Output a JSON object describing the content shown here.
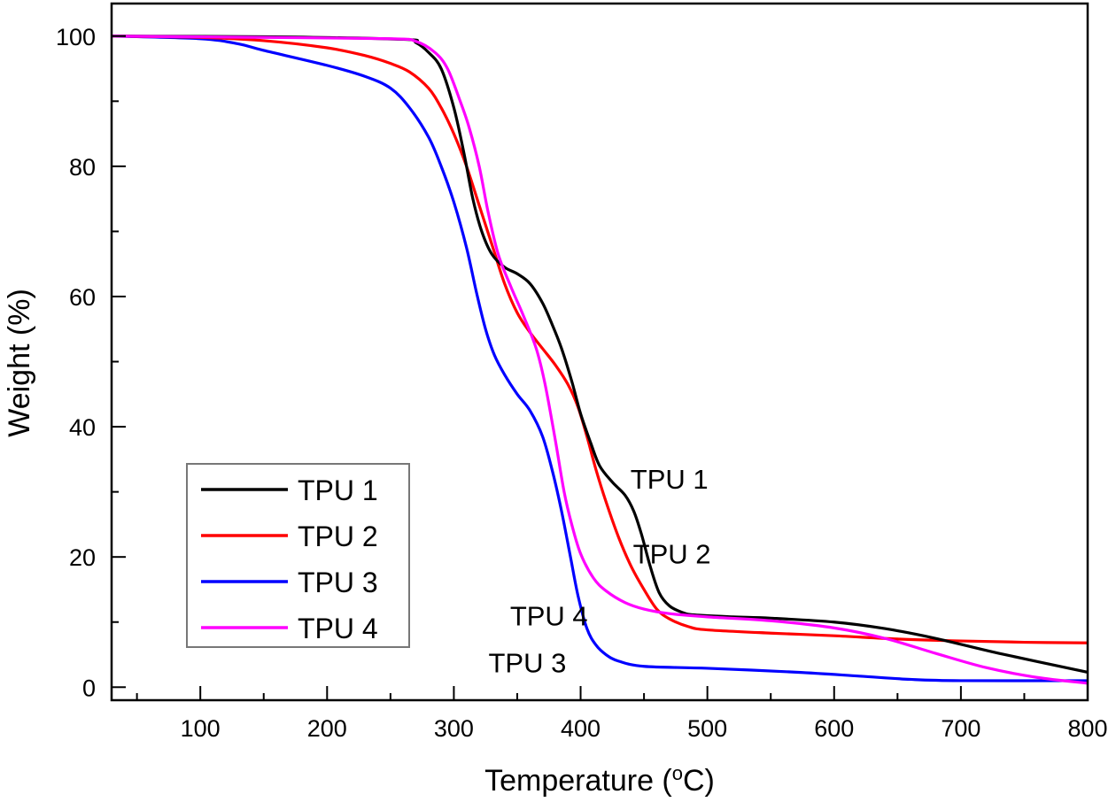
{
  "chart_data": {
    "type": "line",
    "title": "",
    "xlabel": "Temperature (",
    "xlabel_unit_sup": "o",
    "xlabel_unit": "C)",
    "ylabel": "Weight (%)",
    "xlim": [
      30,
      800
    ],
    "ylim": [
      -2,
      105
    ],
    "xticks": [
      100,
      200,
      300,
      400,
      500,
      600,
      700,
      800
    ],
    "yticks": [
      0,
      20,
      40,
      60,
      80,
      100
    ],
    "grid": false,
    "legend_position": "bottom-left",
    "series": [
      {
        "name": "TPU 1",
        "color": "#000000",
        "x": [
          30,
          150,
          260,
          270,
          280,
          290,
          300,
          308,
          315,
          322,
          330,
          340,
          350,
          360,
          370,
          378,
          385,
          393,
          400,
          408,
          415,
          425,
          435,
          442,
          448,
          455,
          462,
          470,
          480,
          490,
          520,
          550,
          600,
          640,
          680,
          730,
          800
        ],
        "y": [
          100,
          99.9,
          99.5,
          99,
          97.5,
          95,
          89,
          82,
          75,
          70,
          66.5,
          64.5,
          63.5,
          62,
          59,
          55.5,
          52,
          47,
          42,
          37.5,
          34,
          31.5,
          29.5,
          27,
          23.5,
          18.5,
          14.5,
          12.5,
          11.5,
          11.1,
          10.8,
          10.6,
          10,
          9,
          7.5,
          5.2,
          2.3
        ]
      },
      {
        "name": "TPU 2",
        "color": "#ff0000",
        "x": [
          30,
          100,
          150,
          200,
          230,
          250,
          265,
          280,
          290,
          300,
          310,
          320,
          330,
          340,
          350,
          360,
          370,
          380,
          390,
          398,
          405,
          412,
          420,
          430,
          440,
          450,
          460,
          470,
          485,
          500,
          550,
          600,
          650,
          700,
          750,
          800
        ],
        "y": [
          100,
          99.8,
          99.3,
          98.2,
          97,
          95.8,
          94.5,
          92,
          89,
          85,
          80,
          74,
          68,
          62,
          57.5,
          54.5,
          52,
          49.5,
          46.5,
          43,
          38.5,
          33.5,
          28.5,
          23,
          18.5,
          15,
          12,
          10.5,
          9.3,
          8.8,
          8.3,
          7.9,
          7.4,
          7.1,
          6.9,
          6.8
        ]
      },
      {
        "name": "TPU 3",
        "color": "#0000ff",
        "x": [
          30,
          100,
          130,
          150,
          200,
          230,
          250,
          265,
          280,
          290,
          300,
          310,
          318,
          325,
          332,
          340,
          350,
          360,
          370,
          378,
          385,
          392,
          398,
          405,
          412,
          420,
          430,
          450,
          500,
          570,
          620,
          660,
          700,
          800
        ],
        "y": [
          100,
          99.6,
          98.8,
          97.8,
          95.5,
          93.8,
          92,
          89,
          84.5,
          80,
          74.5,
          67.5,
          60.5,
          55,
          51,
          48,
          45,
          42.5,
          38.5,
          33,
          27,
          20,
          14,
          9,
          6.5,
          5,
          4,
          3.2,
          2.9,
          2.3,
          1.7,
          1.2,
          1.0,
          1.0
        ]
      },
      {
        "name": "TPU 4",
        "color": "#ff00ff",
        "x": [
          30,
          150,
          250,
          270,
          285,
          295,
          305,
          312,
          320,
          327,
          335,
          345,
          355,
          365,
          372,
          380,
          387,
          393,
          400,
          410,
          420,
          435,
          450,
          470,
          500,
          550,
          600,
          640,
          680,
          720,
          760,
          800
        ],
        "y": [
          100,
          99.8,
          99.6,
          99.2,
          97.5,
          95,
          90,
          86,
          80,
          73,
          66.5,
          61.5,
          57,
          52,
          46.5,
          38,
          30,
          25,
          20.5,
          16.8,
          14.8,
          13,
          12,
          11.3,
          10.8,
          10.2,
          9.1,
          7.5,
          5.2,
          3,
          1.5,
          0.6
        ]
      }
    ],
    "annotations": [
      {
        "text": "TPU 1",
        "x": 470,
        "y": 32
      },
      {
        "text": "TPU 2",
        "x": 472,
        "y": 20.5
      },
      {
        "text": "TPU 4",
        "x": 375,
        "y": 11
      },
      {
        "text": "TPU 3",
        "x": 358,
        "y": 3.8
      }
    ]
  }
}
